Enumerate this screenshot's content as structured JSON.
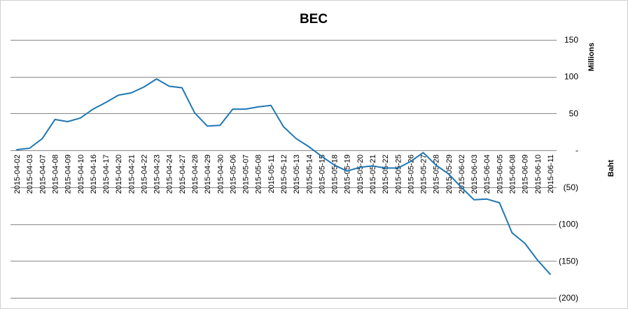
{
  "chart_data": {
    "type": "line",
    "title": "BEC",
    "y_unit_label": "Millions",
    "y_axis_label": "Baht",
    "ylim": [
      -200,
      150
    ],
    "y_ticks": [
      150,
      100,
      50,
      0,
      -50,
      -100,
      -150,
      -200
    ],
    "y_tick_labels": [
      "150",
      "100",
      "50",
      "-",
      "(50)",
      "(100)",
      "(150)",
      "(200)"
    ],
    "grid": true,
    "legend": "none",
    "line_color": "#1f77b4",
    "categories": [
      "2015-04-02",
      "2015-04-03",
      "2015-04-07",
      "2015-04-08",
      "2015-04-09",
      "2015-04-10",
      "2015-04-16",
      "2015-04-17",
      "2015-04-20",
      "2015-04-21",
      "2015-04-22",
      "2015-04-23",
      "2015-04-24",
      "2015-04-27",
      "2015-04-28",
      "2015-04-29",
      "2015-04-30",
      "2015-05-06",
      "2015-05-07",
      "2015-05-08",
      "2015-05-11",
      "2015-05-12",
      "2015-05-13",
      "2015-05-14",
      "2015-05-15",
      "2015-05-18",
      "2015-05-19",
      "2015-05-20",
      "2015-05-21",
      "2015-05-22",
      "2015-05-25",
      "2015-05-26",
      "2015-05-27",
      "2015-05-28",
      "2015-05-29",
      "2015-06-02",
      "2015-06-03",
      "2015-06-04",
      "2015-06-05",
      "2015-06-08",
      "2015-06-09",
      "2015-06-10",
      "2015-06-11"
    ],
    "values": [
      1,
      3,
      16,
      42,
      39,
      44,
      56,
      65,
      75,
      78,
      86,
      97,
      87,
      85,
      51,
      33,
      34,
      56,
      56,
      59,
      61,
      32,
      16,
      5,
      -8,
      -20,
      -28,
      -23,
      -21,
      -24,
      -24,
      -15,
      -3,
      -20,
      -32,
      -50,
      -67,
      -66,
      -71,
      -112,
      -126,
      -149,
      -168
    ]
  }
}
